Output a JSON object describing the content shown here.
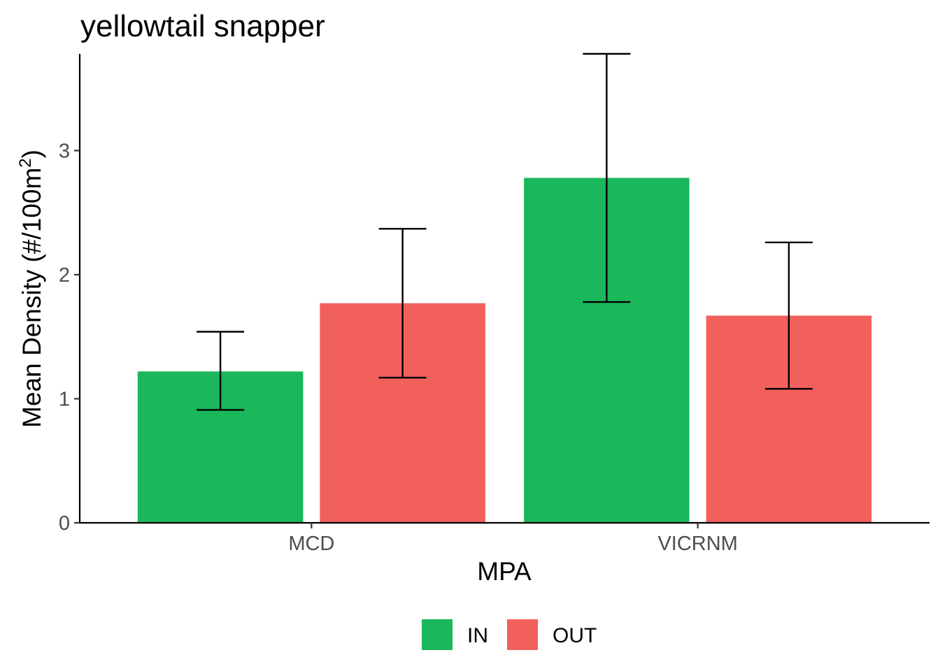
{
  "chart_data": {
    "type": "bar",
    "title": "yellowtail snapper",
    "xlabel": "MPA",
    "ylabel": "Mean Density (#/100m",
    "ylabel_superscript": "2",
    "ylabel_close": ")",
    "categories": [
      "MCD",
      "VICRNM"
    ],
    "series": [
      {
        "name": "IN",
        "color": "#1bb75b",
        "values": [
          1.22,
          2.78
        ],
        "error_low": [
          0.91,
          1.78
        ],
        "error_high": [
          1.54,
          3.78
        ]
      },
      {
        "name": "OUT",
        "color": "#f2605c",
        "values": [
          1.77,
          1.67
        ],
        "error_low": [
          1.17,
          1.08
        ],
        "error_high": [
          2.37,
          2.26
        ]
      }
    ],
    "y_ticks": [
      "0",
      "1",
      "2",
      "3"
    ],
    "ylim": [
      0,
      3.78
    ],
    "grid": false,
    "legend_position": "bottom"
  }
}
